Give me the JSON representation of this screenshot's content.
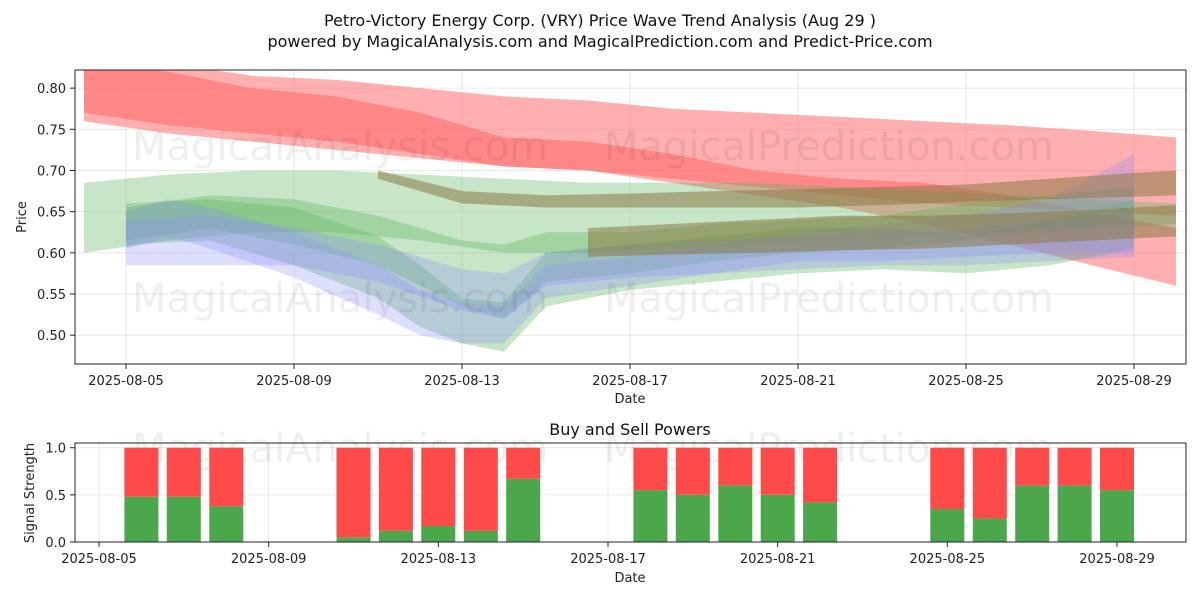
{
  "header": {
    "title": "Petro-Victory Energy Corp. (VRY) Price Wave Trend Analysis (Aug 29 )",
    "subtitle": "powered by MagicalAnalysis.com and MagicalPrediction.com and Predict-Price.com"
  },
  "watermarks": [
    "MagicalAnalysis.com",
    "MagicalPrediction.com"
  ],
  "colors": {
    "red_band": "#ff6060",
    "green_band": "#5fb55f",
    "blue_band": "#8a8aff",
    "buy": "#4ca64c",
    "sell": "#ff4a4a"
  },
  "chart_data": [
    {
      "type": "area",
      "title": "",
      "xlabel": "Date",
      "ylabel": "Price",
      "x_ticks": [
        "2025-08-05",
        "2025-08-09",
        "2025-08-13",
        "2025-08-17",
        "2025-08-21",
        "2025-08-25",
        "2025-08-29"
      ],
      "y_ticks": [
        "0.50",
        "0.55",
        "0.60",
        "0.65",
        "0.70",
        "0.75",
        "0.80"
      ],
      "xlim": [
        "2025-08-03.6",
        "2025-08-30.2"
      ],
      "ylim": [
        0.465,
        0.822
      ],
      "grid": true,
      "series": [
        {
          "color": "red",
          "x": [
            "2025-08-04",
            "2025-08-06",
            "2025-08-08",
            "2025-08-10",
            "2025-08-12",
            "2025-08-14",
            "2025-08-16",
            "2025-08-18",
            "2025-08-20",
            "2025-08-22",
            "2025-08-24",
            "2025-08-26",
            "2025-08-28",
            "2025-08-30"
          ],
          "upper": [
            0.84,
            0.83,
            0.815,
            0.81,
            0.8,
            0.79,
            0.785,
            0.775,
            0.77,
            0.765,
            0.76,
            0.755,
            0.748,
            0.74
          ],
          "lower": [
            0.76,
            0.745,
            0.735,
            0.725,
            0.715,
            0.705,
            0.7,
            0.69,
            0.68,
            0.67,
            0.66,
            0.655,
            0.65,
            0.645
          ]
        },
        {
          "color": "red",
          "x": [
            "2025-08-04",
            "2025-08-06",
            "2025-08-08",
            "2025-08-10",
            "2025-08-12",
            "2025-08-14",
            "2025-08-16",
            "2025-08-18",
            "2025-08-20",
            "2025-08-22",
            "2025-08-24",
            "2025-08-26",
            "2025-08-28",
            "2025-08-30"
          ],
          "upper": [
            0.83,
            0.82,
            0.8,
            0.79,
            0.77,
            0.74,
            0.735,
            0.72,
            0.7,
            0.69,
            0.685,
            0.67,
            0.65,
            0.63
          ],
          "lower": [
            0.77,
            0.755,
            0.745,
            0.735,
            0.72,
            0.705,
            0.7,
            0.685,
            0.67,
            0.655,
            0.635,
            0.61,
            0.585,
            0.56
          ]
        },
        {
          "color": "green",
          "x": [
            "2025-08-04",
            "2025-08-06",
            "2025-08-08",
            "2025-08-10",
            "2025-08-12",
            "2025-08-14",
            "2025-08-16",
            "2025-08-18",
            "2025-08-20",
            "2025-08-22",
            "2025-08-24",
            "2025-08-26",
            "2025-08-28",
            "2025-08-30"
          ],
          "upper": [
            0.685,
            0.695,
            0.7,
            0.7,
            0.695,
            0.69,
            0.685,
            0.685,
            0.685,
            0.68,
            0.675,
            0.67,
            0.665,
            0.66
          ],
          "lower": [
            0.6,
            0.615,
            0.625,
            0.625,
            0.615,
            0.6,
            0.6,
            0.605,
            0.61,
            0.615,
            0.62,
            0.625,
            0.63,
            0.635
          ]
        },
        {
          "color": "green",
          "x": [
            "2025-08-05",
            "2025-08-07",
            "2025-08-09",
            "2025-08-11",
            "2025-08-12",
            "2025-08-13",
            "2025-08-14",
            "2025-08-15",
            "2025-08-17",
            "2025-08-19",
            "2025-08-21",
            "2025-08-23",
            "2025-08-25",
            "2025-08-27",
            "2025-08-29"
          ],
          "upper": [
            0.66,
            0.665,
            0.655,
            0.62,
            0.585,
            0.545,
            0.54,
            0.6,
            0.61,
            0.62,
            0.63,
            0.63,
            0.62,
            0.64,
            0.665
          ],
          "lower": [
            0.61,
            0.615,
            0.585,
            0.545,
            0.51,
            0.49,
            0.48,
            0.535,
            0.555,
            0.565,
            0.575,
            0.58,
            0.575,
            0.585,
            0.605
          ]
        },
        {
          "color": "green",
          "x": [
            "2025-08-05",
            "2025-08-07",
            "2025-08-09",
            "2025-08-11",
            "2025-08-13",
            "2025-08-14",
            "2025-08-15",
            "2025-08-17",
            "2025-08-19",
            "2025-08-21",
            "2025-08-23",
            "2025-08-25",
            "2025-08-27",
            "2025-08-29"
          ],
          "upper": [
            0.655,
            0.67,
            0.665,
            0.645,
            0.615,
            0.61,
            0.625,
            0.625,
            0.635,
            0.64,
            0.645,
            0.66,
            0.67,
            0.68
          ],
          "lower": [
            0.615,
            0.63,
            0.61,
            0.585,
            0.535,
            0.52,
            0.565,
            0.575,
            0.59,
            0.6,
            0.605,
            0.615,
            0.625,
            0.635
          ]
        },
        {
          "color": "blue",
          "x": [
            "2025-08-05",
            "2025-08-06",
            "2025-08-07",
            "2025-08-09",
            "2025-08-11",
            "2025-08-12",
            "2025-08-13",
            "2025-08-14",
            "2025-08-15",
            "2025-08-17",
            "2025-08-19",
            "2025-08-21",
            "2025-08-23",
            "2025-08-25",
            "2025-08-27",
            "2025-08-29"
          ],
          "upper": [
            0.65,
            0.665,
            0.655,
            0.625,
            0.585,
            0.555,
            0.54,
            0.535,
            0.585,
            0.595,
            0.61,
            0.625,
            0.635,
            0.645,
            0.665,
            0.72
          ],
          "lower": [
            0.605,
            0.62,
            0.605,
            0.57,
            0.525,
            0.5,
            0.49,
            0.49,
            0.545,
            0.56,
            0.575,
            0.59,
            0.59,
            0.595,
            0.6,
            0.6
          ]
        },
        {
          "color": "blue",
          "x": [
            "2025-08-05",
            "2025-08-07",
            "2025-08-09",
            "2025-08-11",
            "2025-08-13",
            "2025-08-14",
            "2025-08-15",
            "2025-08-17",
            "2025-08-19",
            "2025-08-21",
            "2025-08-23",
            "2025-08-25",
            "2025-08-27",
            "2025-08-29"
          ],
          "upper": [
            0.64,
            0.645,
            0.63,
            0.61,
            0.58,
            0.575,
            0.6,
            0.61,
            0.615,
            0.62,
            0.625,
            0.63,
            0.64,
            0.65
          ],
          "lower": [
            0.585,
            0.585,
            0.585,
            0.565,
            0.53,
            0.52,
            0.56,
            0.57,
            0.575,
            0.58,
            0.585,
            0.585,
            0.59,
            0.595
          ]
        },
        {
          "color": "olive",
          "x": [
            "2025-08-11",
            "2025-08-13",
            "2025-08-15",
            "2025-08-17",
            "2025-08-19",
            "2025-08-21",
            "2025-08-23",
            "2025-08-25",
            "2025-08-27",
            "2025-08-29",
            "2025-08-30"
          ],
          "upper": [
            0.7,
            0.675,
            0.67,
            0.672,
            0.675,
            0.677,
            0.68,
            0.683,
            0.69,
            0.697,
            0.7
          ],
          "lower": [
            0.69,
            0.66,
            0.655,
            0.655,
            0.655,
            0.655,
            0.658,
            0.662,
            0.665,
            0.668,
            0.67
          ]
        },
        {
          "color": "olive",
          "x": [
            "2025-08-16",
            "2025-08-18",
            "2025-08-20",
            "2025-08-22",
            "2025-08-24",
            "2025-08-26",
            "2025-08-28",
            "2025-08-30"
          ],
          "upper": [
            0.63,
            0.635,
            0.64,
            0.645,
            0.645,
            0.648,
            0.652,
            0.658
          ],
          "lower": [
            0.595,
            0.598,
            0.6,
            0.603,
            0.605,
            0.61,
            0.615,
            0.62
          ]
        }
      ]
    },
    {
      "type": "bar",
      "title": "Buy and Sell Powers",
      "xlabel": "Date",
      "ylabel": "Signal Strength",
      "x_ticks": [
        "2025-08-05",
        "2025-08-09",
        "2025-08-13",
        "2025-08-17",
        "2025-08-21",
        "2025-08-25",
        "2025-08-29"
      ],
      "y_ticks": [
        "0.0",
        "0.5",
        "1.0"
      ],
      "ylim": [
        0,
        1.05
      ],
      "grid": true,
      "series": [
        {
          "name": "Buy",
          "color": "green"
        },
        {
          "name": "Sell",
          "color": "red"
        }
      ],
      "categories": [
        "2025-08-06",
        "2025-08-07",
        "2025-08-08",
        "2025-08-11",
        "2025-08-12",
        "2025-08-13",
        "2025-08-14",
        "2025-08-15",
        "2025-08-18",
        "2025-08-19",
        "2025-08-20",
        "2025-08-21",
        "2025-08-22",
        "2025-08-25",
        "2025-08-26",
        "2025-08-27",
        "2025-08-28",
        "2025-08-29"
      ],
      "buy": [
        0.48,
        0.48,
        0.38,
        0.05,
        0.12,
        0.17,
        0.12,
        0.67,
        0.55,
        0.5,
        0.6,
        0.5,
        0.42,
        0.35,
        0.25,
        0.6,
        0.6,
        0.55
      ],
      "sell": [
        0.52,
        0.52,
        0.62,
        0.95,
        0.88,
        0.83,
        0.88,
        0.33,
        0.45,
        0.5,
        0.4,
        0.5,
        0.58,
        0.65,
        0.75,
        0.4,
        0.4,
        0.45
      ]
    }
  ]
}
